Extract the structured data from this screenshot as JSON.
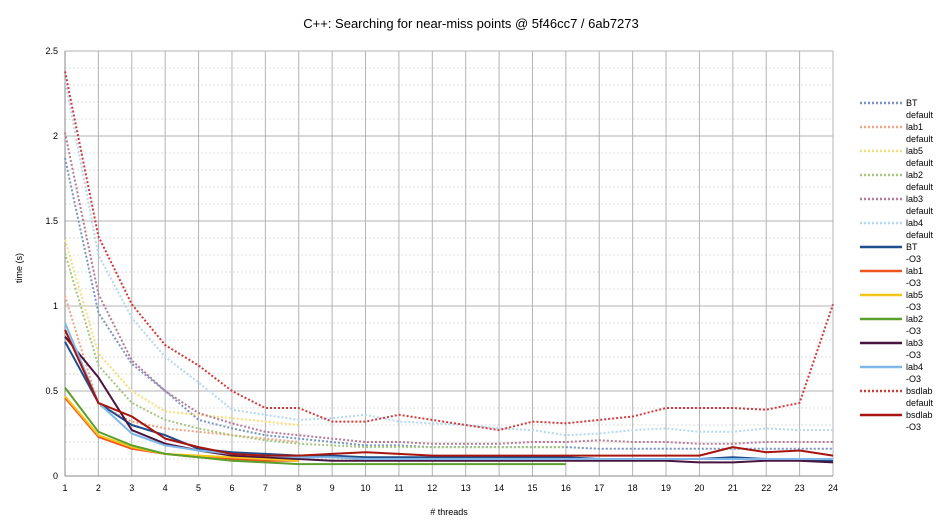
{
  "chart_data": {
    "type": "line",
    "title": "C++: Searching for near-miss points @ 5f46cc7 / 6ab7273",
    "xlabel": "# threads",
    "ylabel": "time (s)",
    "xlim": [
      1,
      24
    ],
    "ylim": [
      0,
      2.5
    ],
    "x_ticks": [
      1,
      2,
      3,
      4,
      5,
      6,
      7,
      8,
      9,
      10,
      11,
      12,
      13,
      14,
      15,
      16,
      17,
      18,
      19,
      20,
      21,
      22,
      23,
      24
    ],
    "y_ticks": [
      "0",
      "0.5",
      "1",
      "1.5",
      "2",
      "2.5"
    ],
    "y_tick_values": [
      0,
      0.5,
      1,
      1.5,
      2,
      2.5
    ],
    "grid": true,
    "legend_placement": "right",
    "series": [
      {
        "name": "BT default",
        "label_lines": [
          "BT",
          "default"
        ],
        "color": "#7895c4",
        "dashed": true,
        "x": [
          1,
          2,
          3,
          4,
          5,
          6,
          7,
          8,
          9,
          10,
          11,
          12,
          13,
          14,
          15,
          16,
          17,
          18,
          19,
          20,
          21,
          22,
          23,
          24
        ],
        "values": [
          1.87,
          0.96,
          0.66,
          0.5,
          0.33,
          0.28,
          0.24,
          0.22,
          0.2,
          0.18,
          0.18,
          0.17,
          0.17,
          0.17,
          0.17,
          0.17,
          0.16,
          0.16,
          0.16,
          0.16,
          0.16,
          0.16,
          0.16,
          0.16
        ]
      },
      {
        "name": "lab1 default",
        "label_lines": [
          "lab1",
          "default"
        ],
        "color": "#f3a484",
        "dashed": true,
        "x": [
          1,
          2,
          3,
          4,
          5,
          6,
          7,
          8
        ],
        "values": [
          1.06,
          0.42,
          0.32,
          0.28,
          0.26,
          0.24,
          0.22,
          0.2
        ]
      },
      {
        "name": "lab5 default",
        "label_lines": [
          "lab5",
          "default"
        ],
        "color": "#fadc7a",
        "dashed": true,
        "x": [
          1,
          2,
          3,
          4,
          5,
          6,
          7,
          8
        ],
        "values": [
          1.39,
          0.72,
          0.5,
          0.38,
          0.36,
          0.34,
          0.32,
          0.3
        ]
      },
      {
        "name": "lab2 default",
        "label_lines": [
          "lab2",
          "default"
        ],
        "color": "#a6c77d",
        "dashed": true,
        "x": [
          1,
          2,
          3,
          4,
          5,
          6,
          7,
          8,
          9,
          10,
          11,
          12,
          13,
          14,
          15,
          16
        ],
        "values": [
          1.31,
          0.65,
          0.43,
          0.33,
          0.28,
          0.24,
          0.21,
          0.19,
          0.18,
          0.17,
          0.17,
          0.17,
          0.17,
          0.17,
          0.17,
          0.17
        ]
      },
      {
        "name": "lab3 default",
        "label_lines": [
          "lab3",
          "default"
        ],
        "color": "#b87a98",
        "dashed": true,
        "x": [
          1,
          2,
          3,
          4,
          5,
          6,
          7,
          8,
          9,
          10,
          11,
          12,
          13,
          14,
          15,
          16,
          17,
          18,
          19,
          20,
          21,
          22,
          23,
          24
        ],
        "values": [
          2.02,
          1.07,
          0.68,
          0.5,
          0.37,
          0.31,
          0.26,
          0.24,
          0.22,
          0.2,
          0.2,
          0.19,
          0.19,
          0.19,
          0.2,
          0.2,
          0.21,
          0.2,
          0.2,
          0.19,
          0.19,
          0.2,
          0.2,
          0.2
        ]
      },
      {
        "name": "lab4 default",
        "label_lines": [
          "lab4",
          "default"
        ],
        "color": "#b4d7f3",
        "dashed": true,
        "x": [
          1,
          2,
          3,
          4,
          5,
          6,
          7,
          8,
          9,
          10,
          11,
          12,
          13,
          14,
          15,
          16,
          17,
          18,
          19,
          20,
          21,
          22,
          23,
          24
        ],
        "values": [
          2.33,
          1.3,
          0.93,
          0.7,
          0.55,
          0.39,
          0.36,
          0.33,
          0.34,
          0.36,
          0.32,
          0.31,
          0.3,
          0.28,
          0.27,
          0.24,
          0.25,
          0.27,
          0.28,
          0.26,
          0.26,
          0.28,
          0.27,
          0.27
        ]
      },
      {
        "name": "BT -O3",
        "label_lines": [
          "BT",
          "-O3"
        ],
        "color": "#1f4e8c",
        "dashed": false,
        "x": [
          1,
          2,
          3,
          4,
          5,
          6,
          7,
          8,
          9,
          10,
          11,
          12,
          13,
          14,
          15,
          16,
          17,
          18,
          19,
          20,
          21,
          22,
          23,
          24
        ],
        "values": [
          0.79,
          0.43,
          0.3,
          0.24,
          0.16,
          0.14,
          0.13,
          0.12,
          0.12,
          0.11,
          0.11,
          0.11,
          0.11,
          0.11,
          0.11,
          0.11,
          0.1,
          0.1,
          0.1,
          0.1,
          0.11,
          0.1,
          0.1,
          0.09
        ]
      },
      {
        "name": "lab1 -O3",
        "label_lines": [
          "lab1",
          "-O3"
        ],
        "color": "#f0531f",
        "dashed": false,
        "x": [
          1,
          2,
          3,
          4,
          5,
          6,
          7,
          8
        ],
        "values": [
          0.46,
          0.23,
          0.16,
          0.13,
          0.11,
          0.1,
          0.09,
          0.09
        ]
      },
      {
        "name": "lab5 -O3",
        "label_lines": [
          "lab5",
          "-O3"
        ],
        "color": "#f5c518",
        "dashed": false,
        "x": [
          1,
          2,
          3,
          4,
          5,
          6,
          7,
          8
        ],
        "values": [
          0.47,
          0.24,
          0.17,
          0.13,
          0.12,
          0.11,
          0.1,
          0.09
        ]
      },
      {
        "name": "lab2 -O3",
        "label_lines": [
          "lab2",
          "-O3"
        ],
        "color": "#5aa02c",
        "dashed": false,
        "x": [
          1,
          2,
          3,
          4,
          5,
          6,
          7,
          8,
          9,
          10,
          11,
          12,
          13,
          14,
          15,
          16
        ],
        "values": [
          0.52,
          0.26,
          0.18,
          0.13,
          0.11,
          0.09,
          0.08,
          0.07,
          0.07,
          0.07,
          0.07,
          0.07,
          0.07,
          0.07,
          0.07,
          0.07
        ]
      },
      {
        "name": "lab3 -O3",
        "label_lines": [
          "lab3",
          "-O3"
        ],
        "color": "#4a1440",
        "dashed": false,
        "x": [
          1,
          2,
          3,
          4,
          5,
          6,
          7,
          8,
          9,
          10,
          11,
          12,
          13,
          14,
          15,
          16,
          17,
          18,
          19,
          20,
          21,
          22,
          23,
          24
        ],
        "values": [
          0.82,
          0.58,
          0.27,
          0.19,
          0.15,
          0.12,
          0.11,
          0.1,
          0.09,
          0.09,
          0.09,
          0.09,
          0.09,
          0.09,
          0.09,
          0.09,
          0.09,
          0.09,
          0.09,
          0.08,
          0.08,
          0.09,
          0.09,
          0.08
        ]
      },
      {
        "name": "lab4 -O3",
        "label_lines": [
          "lab4",
          "-O3"
        ],
        "color": "#7fb8e8",
        "dashed": false,
        "x": [
          1,
          2,
          3,
          4,
          5,
          6,
          7,
          8,
          9,
          10,
          11,
          12,
          13,
          14,
          15,
          16,
          17,
          18,
          19,
          20,
          21,
          22,
          23,
          24
        ],
        "values": [
          0.9,
          0.43,
          0.25,
          0.18,
          0.15,
          0.13,
          0.12,
          0.11,
          0.11,
          0.1,
          0.1,
          0.1,
          0.1,
          0.1,
          0.1,
          0.1,
          0.1,
          0.1,
          0.1,
          0.1,
          0.1,
          0.1,
          0.1,
          0.1
        ]
      },
      {
        "name": "bsdlab default",
        "label_lines": [
          "bsdlab",
          "default"
        ],
        "color": "#d23a3a",
        "dashed": true,
        "x": [
          1,
          2,
          3,
          4,
          5,
          6,
          7,
          8,
          9,
          10,
          11,
          12,
          13,
          14,
          15,
          16,
          17,
          18,
          19,
          20,
          21,
          22,
          23,
          24
        ],
        "values": [
          2.38,
          1.41,
          1.01,
          0.77,
          0.65,
          0.5,
          0.4,
          0.4,
          0.32,
          0.32,
          0.36,
          0.33,
          0.3,
          0.27,
          0.32,
          0.31,
          0.33,
          0.35,
          0.4,
          0.4,
          0.4,
          0.39,
          0.43,
          1.01
        ]
      },
      {
        "name": "bsdlab -O3",
        "label_lines": [
          "bsdlab",
          "-O3"
        ],
        "color": "#a8150e",
        "dashed": false,
        "x": [
          1,
          2,
          3,
          4,
          5,
          6,
          7,
          8,
          9,
          10,
          11,
          12,
          13,
          14,
          15,
          16,
          17,
          18,
          19,
          20,
          21,
          22,
          23,
          24
        ],
        "values": [
          0.86,
          0.43,
          0.35,
          0.22,
          0.17,
          0.13,
          0.12,
          0.12,
          0.13,
          0.14,
          0.13,
          0.12,
          0.12,
          0.12,
          0.12,
          0.12,
          0.12,
          0.12,
          0.12,
          0.12,
          0.17,
          0.14,
          0.15,
          0.12
        ]
      }
    ]
  }
}
